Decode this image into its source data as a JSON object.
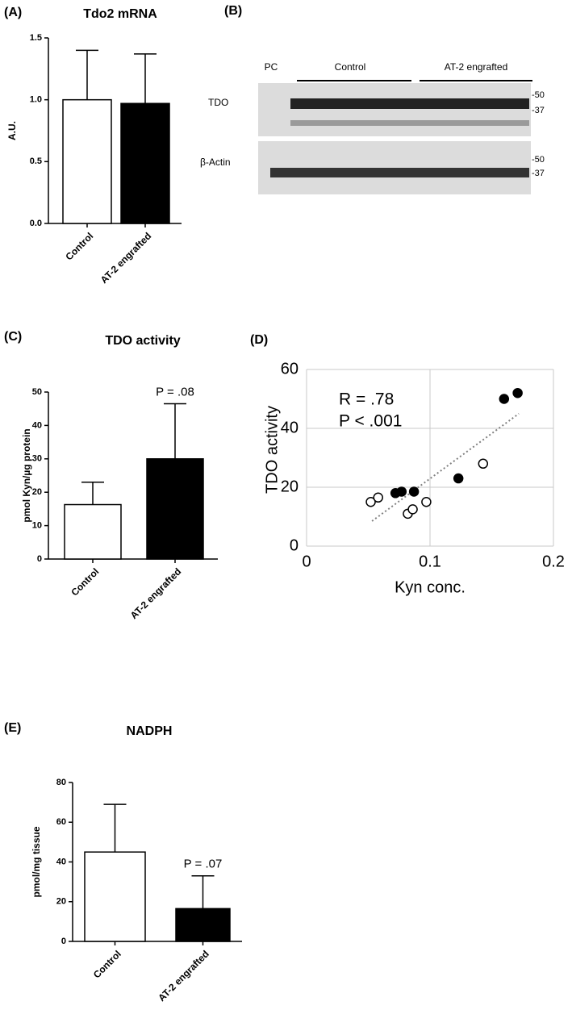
{
  "chart_data": [
    {
      "type": "bar",
      "label": "(A)",
      "title": "Tdo2 mRNA",
      "y_label": "A.U.",
      "categories": [
        "Control",
        "AT-2 engrafted"
      ],
      "values": [
        1.0,
        0.97
      ],
      "errors": [
        0.4,
        0.4
      ],
      "colors": [
        "#ffffff",
        "#000000"
      ],
      "edge_color": "#000000",
      "ylim": [
        0,
        1.5
      ],
      "yticks": [
        {
          "value": 0,
          "label": "0.0"
        },
        0.5,
        {
          "value": 1,
          "label": "1.0"
        },
        1.5
      ]
    },
    {
      "type": "bar",
      "label": "(C)",
      "title": "TDO activity",
      "y_label": "pmol Kyn/µg protein",
      "categories": [
        "Control",
        "AT-2 engrafted"
      ],
      "values": [
        16.3,
        30
      ],
      "errors": [
        6.7,
        16.5
      ],
      "colors": [
        "#ffffff",
        "#000000"
      ],
      "edge_color": "#000000",
      "annotation": "P = .08",
      "ylim": [
        0,
        50
      ],
      "yticks": [
        0,
        10,
        20,
        30,
        40,
        50
      ]
    },
    {
      "type": "scatter",
      "label": "(D)",
      "y_label": "TDO activity",
      "x_label": "Kyn conc.",
      "annotations": [
        "R = .78",
        "P < .001"
      ],
      "grid": true,
      "xlim": [
        0,
        0.2
      ],
      "xticks": [
        0,
        0.1,
        0.2
      ],
      "ylim": [
        0,
        60
      ],
      "yticks": [
        0,
        20,
        40,
        60
      ],
      "series": [
        {
          "color": "#000000",
          "filled": true,
          "x": [
            0.072,
            0.077,
            0.087,
            0.123,
            0.16,
            0.171
          ],
          "values": [
            18,
            18.5,
            18.5,
            23,
            50,
            52
          ]
        },
        {
          "color": "#000000",
          "filled": false,
          "x": [
            0.052,
            0.058,
            0.082,
            0.086,
            0.097,
            0.143
          ],
          "values": [
            15,
            16.5,
            11,
            12.5,
            15,
            28
          ]
        }
      ],
      "trendline": {
        "color": "#808080",
        "x": [
          0.053,
          0.172
        ],
        "values": [
          8.5,
          45
        ]
      }
    },
    {
      "type": "bar",
      "label": "(E)",
      "title": "NADPH",
      "y_label": "pmol/mg tissue",
      "categories": [
        "Control",
        "AT-2 engrafted"
      ],
      "values": [
        45,
        16.5
      ],
      "errors": [
        24,
        16.5
      ],
      "colors": [
        "#ffffff",
        "#000000"
      ],
      "edge_color": "#000000",
      "annotation": "P = .07",
      "ylim": [
        0,
        80
      ],
      "yticks": [
        0,
        20,
        40,
        60,
        80
      ]
    }
  ],
  "blot": {
    "label": "(B)",
    "pc": "PC",
    "groups": [
      "Control",
      "AT-2 engrafted"
    ],
    "rows": [
      {
        "label": "TDO",
        "markers": [
          "-50",
          "-37"
        ]
      },
      {
        "label": "β-Actin",
        "markers": [
          "-50",
          "-37"
        ]
      }
    ]
  }
}
